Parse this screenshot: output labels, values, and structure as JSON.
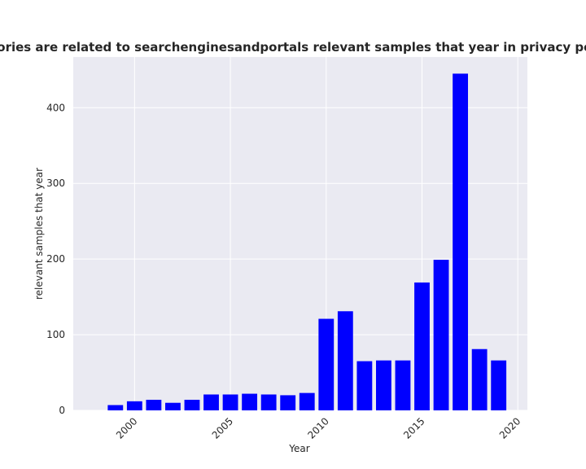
{
  "chart_data": {
    "type": "bar",
    "title": "categories are related to searchenginesandportals relevant samples that year in privacy policies",
    "xlabel": "Year",
    "ylabel": "relevant samples that year",
    "x": [
      1999,
      2000,
      2001,
      2002,
      2003,
      2004,
      2005,
      2006,
      2007,
      2008,
      2009,
      2010,
      2011,
      2012,
      2013,
      2014,
      2015,
      2016,
      2017,
      2018,
      2019
    ],
    "values": [
      7,
      12,
      14,
      10,
      14,
      21,
      21,
      22,
      21,
      20,
      23,
      121,
      131,
      65,
      66,
      66,
      169,
      199,
      445,
      81,
      66
    ],
    "xlim": [
      1996.8,
      2020.5
    ],
    "ylim": [
      0,
      467
    ],
    "x_ticks": [
      2000,
      2005,
      2010,
      2015,
      2020
    ],
    "x_tick_labels": [
      "2000",
      "2005",
      "2010",
      "2015",
      "2020"
    ],
    "y_ticks": [
      0,
      100,
      200,
      300,
      400
    ],
    "y_tick_labels": [
      "0",
      "100",
      "200",
      "300",
      "400"
    ],
    "bar_color": "#0000ff",
    "background_color": "#eaeaf2",
    "grid_color": "#ffffff",
    "grid": true
  }
}
